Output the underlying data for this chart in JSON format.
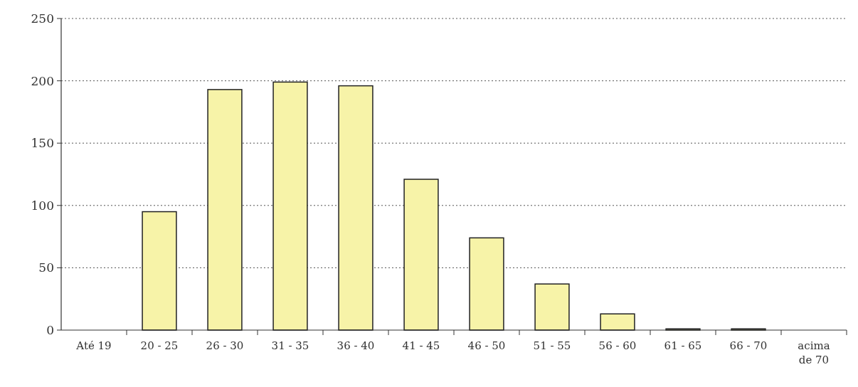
{
  "chart_data": {
    "type": "bar",
    "categories": [
      "Até 19",
      "20 - 25",
      "26 - 30",
      "31 - 35",
      "36 - 40",
      "41 - 45",
      "46 - 50",
      "51 - 55",
      "56 - 60",
      "61 - 65",
      "66 - 70",
      "acima de 70"
    ],
    "values": [
      0,
      95,
      193,
      199,
      196,
      121,
      74,
      37,
      13,
      1,
      1,
      0
    ],
    "color": "#f7f3a8",
    "ylim": [
      0,
      250
    ],
    "yticks": [
      0,
      50,
      100,
      150,
      200,
      250
    ],
    "grid": "y"
  }
}
